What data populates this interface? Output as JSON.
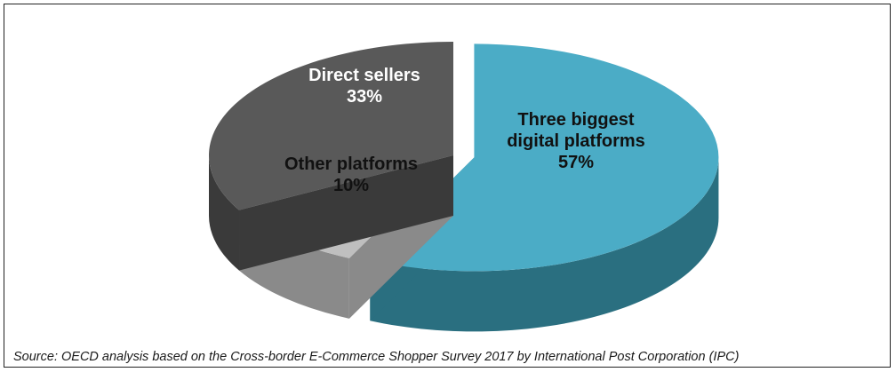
{
  "chart_data": {
    "type": "pie",
    "title": "",
    "slices": [
      {
        "label": "Three biggest digital platforms",
        "value": 57,
        "value_label": "57%",
        "label_lines": [
          "Three biggest",
          "digital platforms",
          "57%"
        ],
        "color": "#4bacc6",
        "side_color": "#2a6f80",
        "label_color": "#111111",
        "exploded": true
      },
      {
        "label": "Other platforms",
        "value": 10,
        "value_label": "10%",
        "label_lines": [
          "Other platforms",
          "10%"
        ],
        "color": "#bfbfbf",
        "side_color": "#8a8a8a",
        "label_color": "#111111",
        "exploded": false
      },
      {
        "label": "Direct sellers",
        "value": 33,
        "value_label": "33%",
        "label_lines": [
          "Direct sellers",
          "33%"
        ],
        "color": "#595959",
        "side_color": "#3a3a3a",
        "label_color": "#ffffff",
        "exploded": false
      }
    ],
    "three_d": true,
    "legend": "none"
  },
  "footer": {
    "source": "Source: OECD analysis based on the Cross-border E-Commerce Shopper Survey 2017 by International Post Corporation (IPC)"
  }
}
